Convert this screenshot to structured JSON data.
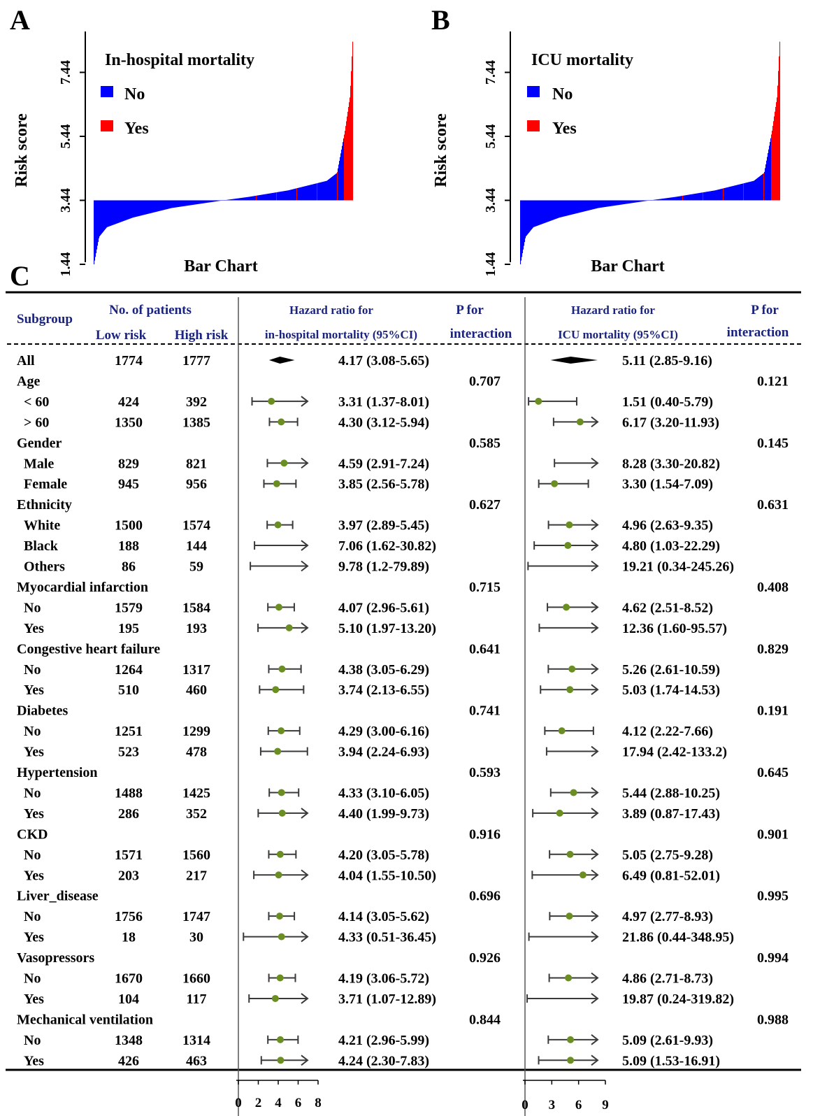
{
  "panel_letters": {
    "a": "A",
    "b": "B",
    "c": "C"
  },
  "colors": {
    "no": "#0000ff",
    "yes": "#ff0000",
    "header": "#1a237e",
    "point": "#6b8e23",
    "ci": "#3a3a3a"
  },
  "chart_data": [
    {
      "type": "bar",
      "panel": "A",
      "title": "In-hospital mortality",
      "xlabel": "Bar Chart",
      "ylabel": "Risk score",
      "yticks": [
        "1.44",
        "3.44",
        "5.44",
        "7.44"
      ],
      "ylim": [
        1.44,
        8.5
      ],
      "baseline": 3.44,
      "legend": [
        {
          "label": "No",
          "color": "#0000ff"
        },
        {
          "label": "Yes",
          "color": "#ff0000"
        }
      ],
      "legend_position": "top-left",
      "sorted_profile": [
        {
          "rank": 0.0,
          "value": 1.44
        },
        {
          "rank": 0.02,
          "value": 2.3
        },
        {
          "rank": 0.05,
          "value": 2.6
        },
        {
          "rank": 0.15,
          "value": 2.9
        },
        {
          "rank": 0.3,
          "value": 3.2
        },
        {
          "rank": 0.45,
          "value": 3.38
        },
        {
          "rank": 0.5,
          "value": 3.44
        },
        {
          "rank": 0.6,
          "value": 3.55
        },
        {
          "rank": 0.75,
          "value": 3.75
        },
        {
          "rank": 0.9,
          "value": 4.05
        },
        {
          "rank": 0.94,
          "value": 4.3
        },
        {
          "rank": 0.97,
          "value": 5.6
        },
        {
          "rank": 0.99,
          "value": 6.7
        },
        {
          "rank": 1.0,
          "value": 8.4
        }
      ]
    },
    {
      "type": "bar",
      "panel": "B",
      "title": "ICU mortality",
      "xlabel": "Bar Chart",
      "ylabel": "Risk score",
      "yticks": [
        "1.44",
        "3.44",
        "5.44",
        "7.44"
      ],
      "ylim": [
        1.44,
        8.5
      ],
      "baseline": 3.44,
      "legend": [
        {
          "label": "No",
          "color": "#0000ff"
        },
        {
          "label": "Yes",
          "color": "#ff0000"
        }
      ],
      "legend_position": "top-left",
      "sorted_profile": [
        {
          "rank": 0.0,
          "value": 1.44
        },
        {
          "rank": 0.02,
          "value": 2.3
        },
        {
          "rank": 0.05,
          "value": 2.6
        },
        {
          "rank": 0.15,
          "value": 2.9
        },
        {
          "rank": 0.3,
          "value": 3.2
        },
        {
          "rank": 0.45,
          "value": 3.38
        },
        {
          "rank": 0.5,
          "value": 3.44
        },
        {
          "rank": 0.6,
          "value": 3.55
        },
        {
          "rank": 0.75,
          "value": 3.75
        },
        {
          "rank": 0.9,
          "value": 4.05
        },
        {
          "rank": 0.94,
          "value": 4.3
        },
        {
          "rank": 0.97,
          "value": 5.6
        },
        {
          "rank": 0.99,
          "value": 6.7
        },
        {
          "rank": 1.0,
          "value": 8.4
        }
      ]
    },
    {
      "type": "table",
      "panel": "C",
      "headers": {
        "subgroup": "Subgroup",
        "patients": "No. of patients",
        "low": "Low risk",
        "high": "High risk",
        "hr1_line1": "Hazard ratio for",
        "hr1_line2": "in-hospital mortality (95%CI)",
        "p_line1": "P for",
        "p_line2": "interaction",
        "hr2_line1": "Hazard ratio for",
        "hr2_line2": "ICU mortality (95%CI)"
      },
      "axis1": {
        "ticks": [
          0,
          2,
          4,
          6,
          8
        ],
        "tick_labels": [
          "0",
          "2",
          "4",
          "6",
          "8"
        ],
        "min": 0,
        "max": 8
      },
      "axis2": {
        "ticks": [
          0,
          3,
          6,
          9
        ],
        "tick_labels": [
          "0",
          "3",
          "6",
          "9"
        ],
        "min": 0,
        "max": 9
      },
      "rows": [
        {
          "label": "All",
          "indent": false,
          "low": "1774",
          "high": "1777",
          "hr1": 4.17,
          "lo1": 3.08,
          "hi1": 5.65,
          "text1": "4.17 (3.08-5.65)",
          "diamond": true,
          "hr2": 5.11,
          "lo2": 2.85,
          "hi2": 9.16,
          "text2": "5.11 (2.85-9.16)"
        },
        {
          "label": "Age",
          "group": true,
          "p1": "0.707",
          "p2": "0.121"
        },
        {
          "label": "< 60",
          "indent": true,
          "low": "424",
          "high": "392",
          "hr1": 3.31,
          "lo1": 1.37,
          "hi1": 8.01,
          "text1": "3.31 (1.37-8.01)",
          "hr2": 1.51,
          "lo2": 0.4,
          "hi2": 5.79,
          "text2": "1.51 (0.40-5.79)"
        },
        {
          "label": "> 60",
          "indent": true,
          "low": "1350",
          "high": "1385",
          "hr1": 4.3,
          "lo1": 3.12,
          "hi1": 5.94,
          "text1": "4.30 (3.12-5.94)",
          "hr2": 6.17,
          "lo2": 3.2,
          "hi2": 11.93,
          "text2": "6.17 (3.20-11.93)"
        },
        {
          "label": "Gender",
          "group": true,
          "p1": "0.585",
          "p2": "0.145"
        },
        {
          "label": "Male",
          "indent": true,
          "low": "829",
          "high": "821",
          "hr1": 4.59,
          "lo1": 2.91,
          "hi1": 7.24,
          "text1": "4.59 (2.91-7.24)",
          "hr2": 8.28,
          "lo2": 3.3,
          "hi2": 20.82,
          "text2": "8.28 (3.30-20.82)"
        },
        {
          "label": "Female",
          "indent": true,
          "low": "945",
          "high": "956",
          "hr1": 3.85,
          "lo1": 2.56,
          "hi1": 5.78,
          "text1": "3.85 (2.56-5.78)",
          "hr2": 3.3,
          "lo2": 1.54,
          "hi2": 7.09,
          "text2": "3.30 (1.54-7.09)"
        },
        {
          "label": "Ethnicity",
          "group": true,
          "p1": "0.627",
          "p2": "0.631"
        },
        {
          "label": "White",
          "indent": true,
          "low": "1500",
          "high": "1574",
          "hr1": 3.97,
          "lo1": 2.89,
          "hi1": 5.45,
          "text1": "3.97 (2.89-5.45)",
          "hr2": 4.96,
          "lo2": 2.63,
          "hi2": 9.35,
          "text2": "4.96 (2.63-9.35)"
        },
        {
          "label": "Black",
          "indent": true,
          "low": "188",
          "high": "144",
          "hr1": 7.06,
          "lo1": 1.62,
          "hi1": 30.82,
          "text1": "7.06 (1.62-30.82)",
          "hr2": 4.8,
          "lo2": 1.03,
          "hi2": 22.29,
          "text2": "4.80 (1.03-22.29)"
        },
        {
          "label": "Others",
          "indent": true,
          "low": "86",
          "high": "59",
          "hr1": 9.78,
          "lo1": 1.2,
          "hi1": 79.89,
          "text1": "9.78 (1.2-79.89)",
          "hr2": 19.21,
          "lo2": 0.34,
          "hi2": 245.26,
          "text2": "19.21 (0.34-245.26)"
        },
        {
          "label": "Myocardial infarction",
          "group": true,
          "p1": "0.715",
          "p2": "0.408"
        },
        {
          "label": "No",
          "indent": true,
          "low": "1579",
          "high": "1584",
          "hr1": 4.07,
          "lo1": 2.96,
          "hi1": 5.61,
          "text1": "4.07 (2.96-5.61)",
          "hr2": 4.62,
          "lo2": 2.51,
          "hi2": 8.52,
          "text2": "4.62 (2.51-8.52)"
        },
        {
          "label": "Yes",
          "indent": true,
          "low": "195",
          "high": "193",
          "hr1": 5.1,
          "lo1": 1.97,
          "hi1": 13.2,
          "text1": "5.10 (1.97-13.20)",
          "hr2": 12.36,
          "lo2": 1.6,
          "hi2": 95.57,
          "text2": "12.36 (1.60-95.57)"
        },
        {
          "label": "Congestive heart failure",
          "group": true,
          "p1": "0.641",
          "p2": "0.829"
        },
        {
          "label": "No",
          "indent": true,
          "low": "1264",
          "high": "1317",
          "hr1": 4.38,
          "lo1": 3.05,
          "hi1": 6.29,
          "text1": "4.38 (3.05-6.29)",
          "hr2": 5.26,
          "lo2": 2.61,
          "hi2": 10.59,
          "text2": "5.26 (2.61-10.59)"
        },
        {
          "label": "Yes",
          "indent": true,
          "low": "510",
          "high": "460",
          "hr1": 3.74,
          "lo1": 2.13,
          "hi1": 6.55,
          "text1": "3.74 (2.13-6.55)",
          "hr2": 5.03,
          "lo2": 1.74,
          "hi2": 14.53,
          "text2": "5.03 (1.74-14.53)"
        },
        {
          "label": "Diabetes",
          "group": true,
          "p1": "0.741",
          "p2": "0.191"
        },
        {
          "label": "No",
          "indent": true,
          "low": "1251",
          "high": "1299",
          "hr1": 4.29,
          "lo1": 3.0,
          "hi1": 6.16,
          "text1": "4.29 (3.00-6.16)",
          "hr2": 4.12,
          "lo2": 2.22,
          "hi2": 7.66,
          "text2": "4.12 (2.22-7.66)"
        },
        {
          "label": "Yes",
          "indent": true,
          "low": "523",
          "high": "478",
          "hr1": 3.94,
          "lo1": 2.24,
          "hi1": 6.93,
          "text1": "3.94 (2.24-6.93)",
          "hr2": 17.94,
          "lo2": 2.42,
          "hi2": 133.2,
          "text2": "17.94 (2.42-133.2)"
        },
        {
          "label": "Hypertension",
          "group": true,
          "p1": "0.593",
          "p2": "0.645"
        },
        {
          "label": "No",
          "indent": true,
          "low": "1488",
          "high": "1425",
          "hr1": 4.33,
          "lo1": 3.1,
          "hi1": 6.05,
          "text1": "4.33 (3.10-6.05)",
          "hr2": 5.44,
          "lo2": 2.88,
          "hi2": 10.25,
          "text2": "5.44 (2.88-10.25)"
        },
        {
          "label": "Yes",
          "indent": true,
          "low": "286",
          "high": "352",
          "hr1": 4.4,
          "lo1": 1.99,
          "hi1": 9.73,
          "text1": "4.40 (1.99-9.73)",
          "hr2": 3.89,
          "lo2": 0.87,
          "hi2": 17.43,
          "text2": "3.89 (0.87-17.43)"
        },
        {
          "label": "CKD",
          "group": true,
          "p1": "0.916",
          "p2": "0.901"
        },
        {
          "label": "No",
          "indent": true,
          "low": "1571",
          "high": "1560",
          "hr1": 4.2,
          "lo1": 3.05,
          "hi1": 5.78,
          "text1": "4.20 (3.05-5.78)",
          "hr2": 5.05,
          "lo2": 2.75,
          "hi2": 9.28,
          "text2": "5.05 (2.75-9.28)"
        },
        {
          "label": "Yes",
          "indent": true,
          "low": "203",
          "high": "217",
          "hr1": 4.04,
          "lo1": 1.55,
          "hi1": 10.5,
          "text1": "4.04 (1.55-10.50)",
          "hr2": 6.49,
          "lo2": 0.81,
          "hi2": 52.01,
          "text2": "6.49 (0.81-52.01)"
        },
        {
          "label": "Liver_disease",
          "group": true,
          "p1": "0.696",
          "p2": "0.995"
        },
        {
          "label": "No",
          "indent": true,
          "low": "1756",
          "high": "1747",
          "hr1": 4.14,
          "lo1": 3.05,
          "hi1": 5.62,
          "text1": "4.14 (3.05-5.62)",
          "hr2": 4.97,
          "lo2": 2.77,
          "hi2": 8.93,
          "text2": "4.97 (2.77-8.93)"
        },
        {
          "label": "Yes",
          "indent": true,
          "low": "18",
          "high": "30",
          "hr1": 4.33,
          "lo1": 0.51,
          "hi1": 36.45,
          "text1": "4.33 (0.51-36.45)",
          "hr2": 21.86,
          "lo2": 0.44,
          "hi2": 348.95,
          "text2": "21.86 (0.44-348.95)"
        },
        {
          "label": "Vasopressors",
          "group": true,
          "p1": "0.926",
          "p2": "0.994"
        },
        {
          "label": "No",
          "indent": true,
          "low": "1670",
          "high": "1660",
          "hr1": 4.19,
          "lo1": 3.06,
          "hi1": 5.72,
          "text1": "4.19 (3.06-5.72)",
          "hr2": 4.86,
          "lo2": 2.71,
          "hi2": 8.73,
          "text2": "4.86 (2.71-8.73)"
        },
        {
          "label": "Yes",
          "indent": true,
          "low": "104",
          "high": "117",
          "hr1": 3.71,
          "lo1": 1.07,
          "hi1": 12.89,
          "text1": "3.71 (1.07-12.89)",
          "hr2": 19.87,
          "lo2": 0.24,
          "hi2": 319.82,
          "text2": "19.87 (0.24-319.82)"
        },
        {
          "label": "Mechanical ventilation",
          "group": true,
          "p1": "0.844",
          "p2": "0.988"
        },
        {
          "label": "No",
          "indent": true,
          "low": "1348",
          "high": "1314",
          "hr1": 4.21,
          "lo1": 2.96,
          "hi1": 5.99,
          "text1": "4.21 (2.96-5.99)",
          "hr2": 5.09,
          "lo2": 2.61,
          "hi2": 9.93,
          "text2": "5.09 (2.61-9.93)"
        },
        {
          "label": "Yes",
          "indent": true,
          "low": "426",
          "high": "463",
          "hr1": 4.24,
          "lo1": 2.3,
          "hi1": 7.83,
          "text1": "4.24 (2.30-7.83)",
          "hr2": 5.09,
          "lo2": 1.53,
          "hi2": 16.91,
          "text2": "5.09 (1.53-16.91)"
        }
      ]
    }
  ]
}
